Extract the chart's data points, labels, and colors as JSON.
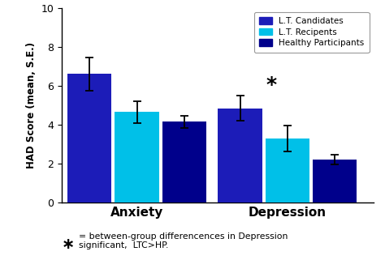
{
  "categories": [
    "Anxiety",
    "Depression"
  ],
  "groups": [
    "L.T. Candidates",
    "L.T. Recipents",
    "Healthy Participants"
  ],
  "values": [
    [
      6.6,
      4.65,
      4.15
    ],
    [
      4.85,
      3.3,
      2.22
    ]
  ],
  "errors": [
    [
      0.85,
      0.55,
      0.3
    ],
    [
      0.65,
      0.65,
      0.25
    ]
  ],
  "colors": [
    "#1c1cb8",
    "#00c0e8",
    "#00008b"
  ],
  "ylabel": "HAD Score (mean, S.E.)",
  "ylim": [
    0,
    10
  ],
  "yticks": [
    0,
    2,
    4,
    6,
    8,
    10
  ],
  "bar_width": 0.22,
  "background_color": "#ffffff",
  "legend_labels": [
    "L.T. Candidates",
    "L.T. Recipents",
    "Healthy Participants"
  ]
}
